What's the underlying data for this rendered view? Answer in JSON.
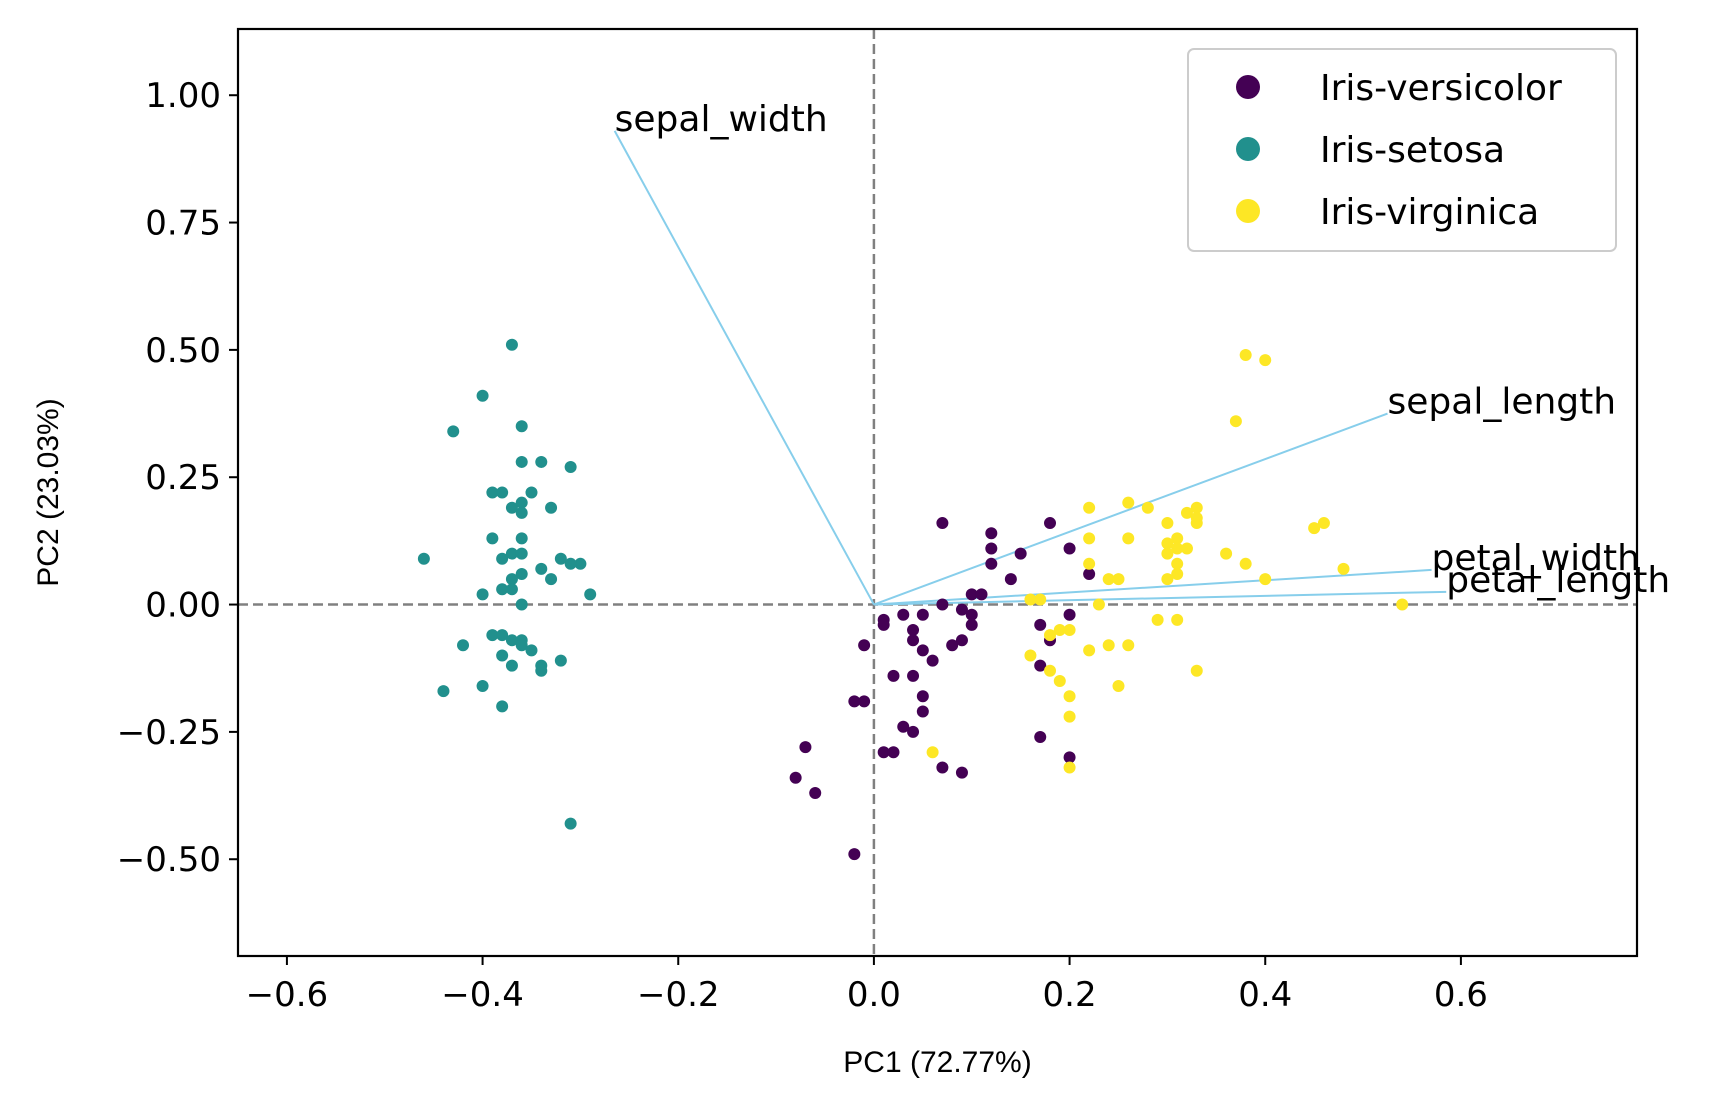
{
  "chart_data": {
    "type": "scatter",
    "title": "",
    "xlabel": "PC1 (72.77%)",
    "ylabel": "PC2 (23.03%)",
    "xlim": [
      -0.65,
      0.78
    ],
    "ylim": [
      -0.69,
      1.13
    ],
    "xticks": [
      -0.6,
      -0.4,
      -0.2,
      0.0,
      0.2,
      0.4,
      0.6
    ],
    "xtick_labels": [
      "−0.6",
      "−0.4",
      "−0.2",
      "0.0",
      "0.2",
      "0.4",
      "0.6"
    ],
    "yticks": [
      -0.5,
      -0.25,
      0.0,
      0.25,
      0.5,
      0.75,
      1.0
    ],
    "ytick_labels": [
      "−0.50",
      "−0.25",
      "0.00",
      "0.25",
      "0.50",
      "0.75",
      "1.00"
    ],
    "grid": false,
    "legend_position": "top-right",
    "reference_lines": {
      "x": 0,
      "y": 0,
      "style": "dashed",
      "color": "#808080"
    },
    "series": [
      {
        "name": "Iris-versicolor",
        "color": "#440154",
        "points": [
          [
            0.07,
            0.16
          ],
          [
            0.12,
            0.14
          ],
          [
            0.18,
            0.16
          ],
          [
            0.12,
            0.11
          ],
          [
            0.15,
            0.1
          ],
          [
            0.2,
            0.11
          ],
          [
            0.22,
            0.06
          ],
          [
            0.12,
            0.08
          ],
          [
            0.14,
            0.05
          ],
          [
            0.1,
            0.02
          ],
          [
            0.09,
            -0.01
          ],
          [
            0.07,
            0.0
          ],
          [
            0.05,
            -0.02
          ],
          [
            0.03,
            -0.02
          ],
          [
            0.01,
            -0.03
          ],
          [
            0.01,
            -0.04
          ],
          [
            -0.01,
            -0.08
          ],
          [
            0.04,
            -0.05
          ],
          [
            0.04,
            -0.07
          ],
          [
            0.08,
            -0.08
          ],
          [
            0.1,
            -0.02
          ],
          [
            0.1,
            -0.04
          ],
          [
            0.09,
            -0.07
          ],
          [
            0.05,
            -0.09
          ],
          [
            0.06,
            -0.11
          ],
          [
            0.02,
            -0.14
          ],
          [
            0.04,
            -0.14
          ],
          [
            0.05,
            -0.18
          ],
          [
            -0.02,
            -0.19
          ],
          [
            -0.01,
            -0.19
          ],
          [
            0.03,
            -0.24
          ],
          [
            0.05,
            -0.21
          ],
          [
            0.04,
            -0.25
          ],
          [
            0.01,
            -0.29
          ],
          [
            0.02,
            -0.29
          ],
          [
            0.07,
            -0.32
          ],
          [
            0.09,
            -0.33
          ],
          [
            -0.07,
            -0.28
          ],
          [
            -0.08,
            -0.34
          ],
          [
            -0.06,
            -0.37
          ],
          [
            -0.02,
            -0.49
          ],
          [
            0.17,
            -0.04
          ],
          [
            0.18,
            -0.07
          ],
          [
            0.2,
            -0.02
          ],
          [
            0.17,
            -0.12
          ],
          [
            0.17,
            -0.26
          ],
          [
            0.2,
            -0.3
          ],
          [
            0.11,
            0.02
          ]
        ]
      },
      {
        "name": "Iris-setosa",
        "color": "#21908d",
        "points": [
          [
            -0.37,
            0.51
          ],
          [
            -0.4,
            0.41
          ],
          [
            -0.43,
            0.34
          ],
          [
            -0.36,
            0.35
          ],
          [
            -0.36,
            0.28
          ],
          [
            -0.34,
            0.28
          ],
          [
            -0.31,
            0.27
          ],
          [
            -0.39,
            0.22
          ],
          [
            -0.38,
            0.22
          ],
          [
            -0.35,
            0.22
          ],
          [
            -0.37,
            0.19
          ],
          [
            -0.36,
            0.2
          ],
          [
            -0.36,
            0.18
          ],
          [
            -0.33,
            0.19
          ],
          [
            -0.39,
            0.13
          ],
          [
            -0.36,
            0.13
          ],
          [
            -0.37,
            0.1
          ],
          [
            -0.36,
            0.1
          ],
          [
            -0.38,
            0.09
          ],
          [
            -0.46,
            0.09
          ],
          [
            -0.32,
            0.09
          ],
          [
            -0.3,
            0.08
          ],
          [
            -0.31,
            0.08
          ],
          [
            -0.34,
            0.07
          ],
          [
            -0.36,
            0.06
          ],
          [
            -0.33,
            0.05
          ],
          [
            -0.37,
            0.05
          ],
          [
            -0.38,
            0.03
          ],
          [
            -0.37,
            0.03
          ],
          [
            -0.4,
            0.02
          ],
          [
            -0.29,
            0.02
          ],
          [
            -0.36,
            0.0
          ],
          [
            -0.39,
            -0.06
          ],
          [
            -0.38,
            -0.06
          ],
          [
            -0.36,
            -0.07
          ],
          [
            -0.37,
            -0.07
          ],
          [
            -0.42,
            -0.08
          ],
          [
            -0.36,
            -0.08
          ],
          [
            -0.35,
            -0.09
          ],
          [
            -0.38,
            -0.1
          ],
          [
            -0.37,
            -0.12
          ],
          [
            -0.34,
            -0.12
          ],
          [
            -0.34,
            -0.13
          ],
          [
            -0.32,
            -0.11
          ],
          [
            -0.4,
            -0.16
          ],
          [
            -0.44,
            -0.17
          ],
          [
            -0.38,
            -0.2
          ],
          [
            -0.31,
            -0.43
          ]
        ]
      },
      {
        "name": "Iris-virginica",
        "color": "#fde725",
        "points": [
          [
            0.38,
            0.49
          ],
          [
            0.4,
            0.48
          ],
          [
            0.37,
            0.36
          ],
          [
            0.22,
            0.19
          ],
          [
            0.26,
            0.2
          ],
          [
            0.28,
            0.19
          ],
          [
            0.3,
            0.16
          ],
          [
            0.33,
            0.19
          ],
          [
            0.32,
            0.18
          ],
          [
            0.33,
            0.17
          ],
          [
            0.33,
            0.16
          ],
          [
            0.45,
            0.15
          ],
          [
            0.46,
            0.16
          ],
          [
            0.22,
            0.13
          ],
          [
            0.26,
            0.13
          ],
          [
            0.31,
            0.13
          ],
          [
            0.3,
            0.12
          ],
          [
            0.31,
            0.11
          ],
          [
            0.32,
            0.11
          ],
          [
            0.36,
            0.1
          ],
          [
            0.3,
            0.1
          ],
          [
            0.22,
            0.08
          ],
          [
            0.31,
            0.08
          ],
          [
            0.38,
            0.08
          ],
          [
            0.48,
            0.07
          ],
          [
            0.31,
            0.06
          ],
          [
            0.24,
            0.05
          ],
          [
            0.25,
            0.05
          ],
          [
            0.3,
            0.05
          ],
          [
            0.4,
            0.05
          ],
          [
            0.16,
            0.01
          ],
          [
            0.17,
            0.01
          ],
          [
            0.23,
            0.0
          ],
          [
            0.54,
            0.0
          ],
          [
            0.29,
            -0.03
          ],
          [
            0.31,
            -0.03
          ],
          [
            0.19,
            -0.05
          ],
          [
            0.2,
            -0.05
          ],
          [
            0.18,
            -0.06
          ],
          [
            0.26,
            -0.08
          ],
          [
            0.24,
            -0.08
          ],
          [
            0.22,
            -0.09
          ],
          [
            0.16,
            -0.1
          ],
          [
            0.18,
            -0.13
          ],
          [
            0.19,
            -0.15
          ],
          [
            0.33,
            -0.13
          ],
          [
            0.2,
            -0.18
          ],
          [
            0.25,
            -0.16
          ],
          [
            0.2,
            -0.22
          ],
          [
            0.06,
            -0.29
          ],
          [
            0.2,
            -0.32
          ]
        ]
      }
    ],
    "loadings": [
      {
        "name": "sepal_width",
        "x": -0.265,
        "y": 0.93
      },
      {
        "name": "sepal_length",
        "x": 0.525,
        "y": 0.375
      },
      {
        "name": "petal_width",
        "x": 0.57,
        "y": 0.068
      },
      {
        "name": "petal_length",
        "x": 0.585,
        "y": 0.025
      }
    ],
    "loading_color": "#87ceeb"
  }
}
